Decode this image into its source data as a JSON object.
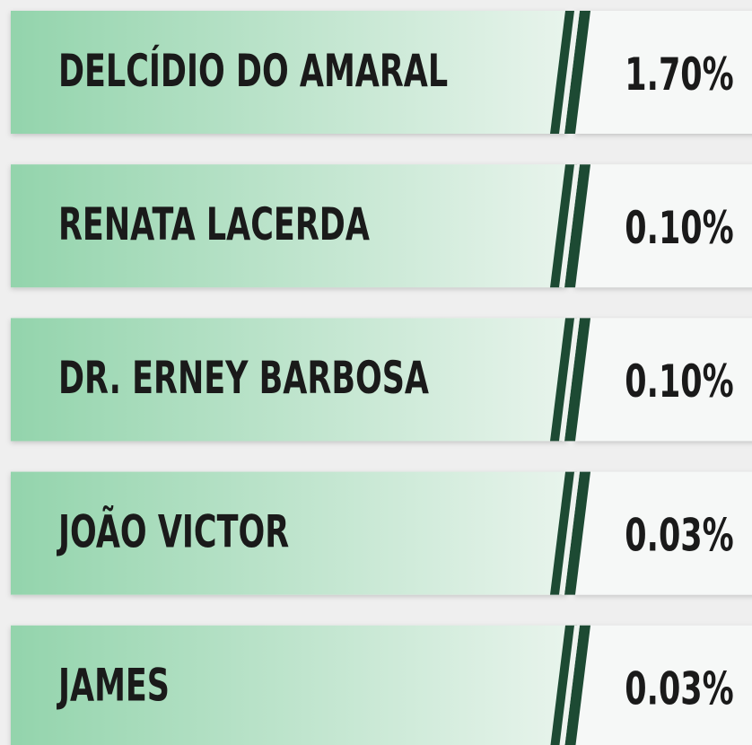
{
  "rows": [
    {
      "name": "DELCÍDIO DO AMARAL",
      "value": "1.70%"
    },
    {
      "name": "RENATA LACERDA",
      "value": "0.10%"
    },
    {
      "name": "DR. ERNEY BARBOSA",
      "value": "0.10%"
    },
    {
      "name": "JOÃO VICTOR",
      "value": "0.03%"
    },
    {
      "name": "JAMES",
      "value": "0.03%"
    }
  ]
}
